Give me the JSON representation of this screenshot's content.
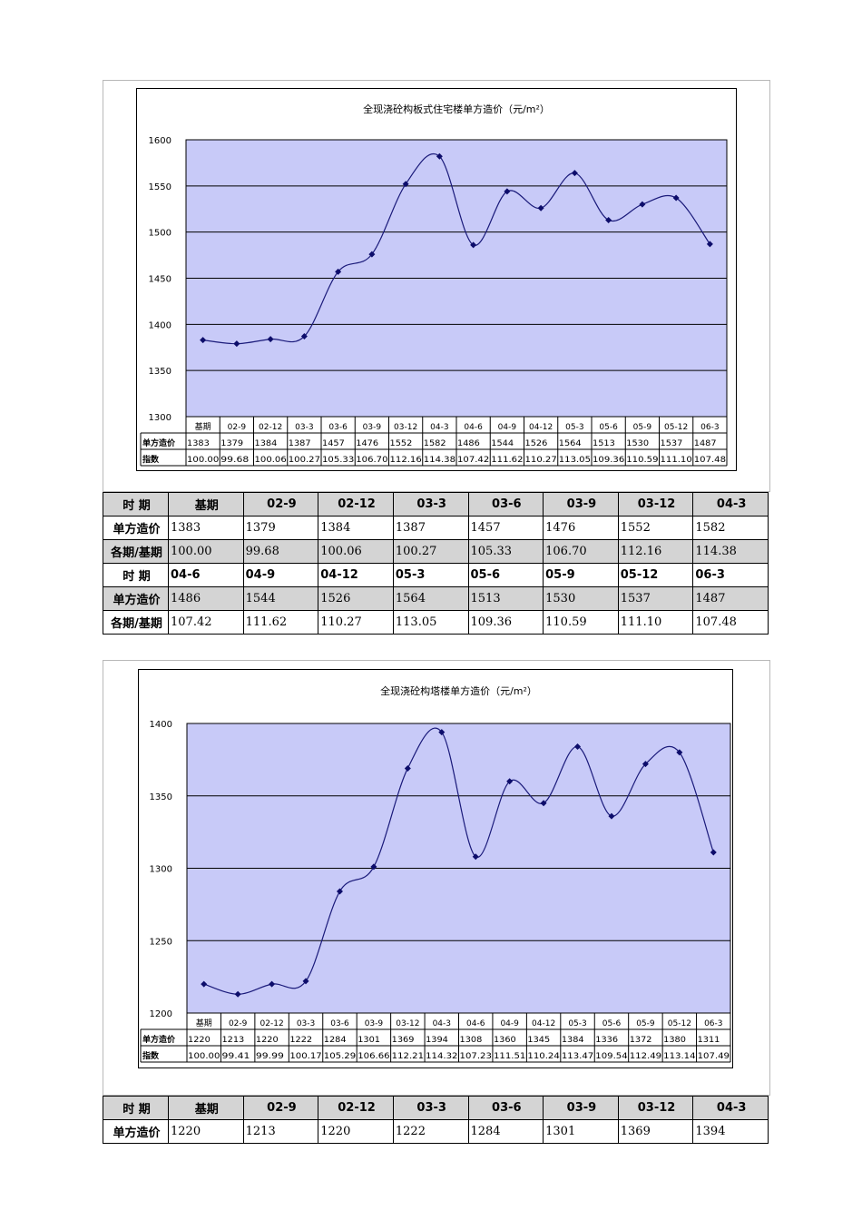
{
  "colors": {
    "plot_bg": "#c8caf8",
    "line": "#1a1a7a",
    "marker": "#0d0d6b",
    "grid": "#000000"
  },
  "table_labels": {
    "period": "时  期",
    "unit_price": "单方造价",
    "ratio": "各期/基期"
  },
  "chart_data": [
    {
      "type": "line",
      "title": "全现浇砼构板式住宅楼单方造价（元/m²）",
      "categories": [
        "基期",
        "02-9",
        "02-12",
        "03-3",
        "03-6",
        "03-9",
        "03-12",
        "04-3",
        "04-6",
        "04-9",
        "04-12",
        "05-3",
        "05-6",
        "05-9",
        "05-12",
        "06-3"
      ],
      "series": [
        {
          "values": [
            1383,
            1379,
            1384,
            1387,
            1457,
            1476,
            1552,
            1582,
            1486,
            1544,
            1526,
            1564,
            1513,
            1530,
            1537,
            1487
          ]
        }
      ],
      "ylim": [
        1300,
        1600
      ],
      "yticks": [
        1300,
        1350,
        1400,
        1450,
        1500,
        1550,
        1600
      ],
      "grid": true,
      "data_table": {
        "row_labels": [
          "单方造价",
          "指数"
        ],
        "rows": [
          [
            "1383",
            "1379",
            "1384",
            "1387",
            "1457",
            "1476",
            "1552",
            "1582",
            "1486",
            "1544",
            "1526",
            "1564",
            "1513",
            "1530",
            "1537",
            "1487"
          ],
          [
            "100.00",
            "99.68",
            "100.06",
            "100.27",
            "105.33",
            "106.70",
            "112.16",
            "114.38",
            "107.42",
            "111.62",
            "110.27",
            "113.05",
            "109.36",
            "110.59",
            "111.10",
            "107.48"
          ]
        ]
      }
    },
    {
      "type": "line",
      "title": "全现浇砼构塔楼单方造价（元/m²）",
      "categories": [
        "基期",
        "02-9",
        "02-12",
        "03-3",
        "03-6",
        "03-9",
        "03-12",
        "04-3",
        "04-6",
        "04-9",
        "04-12",
        "05-3",
        "05-6",
        "05-9",
        "05-12",
        "06-3"
      ],
      "series": [
        {
          "values": [
            1220,
            1213,
            1220,
            1222,
            1284,
            1301,
            1369,
            1394,
            1308,
            1360,
            1345,
            1384,
            1336,
            1372,
            1380,
            1311
          ]
        }
      ],
      "ylim": [
        1200,
        1400
      ],
      "yticks": [
        1200,
        1250,
        1300,
        1350,
        1400
      ],
      "grid": true,
      "data_table": {
        "row_labels": [
          "单方造价",
          "指数"
        ],
        "rows": [
          [
            "1220",
            "1213",
            "1220",
            "1222",
            "1284",
            "1301",
            "1369",
            "1394",
            "1308",
            "1360",
            "1345",
            "1384",
            "1336",
            "1372",
            "1380",
            "1311"
          ],
          [
            "100.00",
            "99.41",
            "99.99",
            "100.17",
            "105.29",
            "106.66",
            "112.21",
            "114.32",
            "107.23",
            "111.51",
            "110.24",
            "113.47",
            "109.54",
            "112.49",
            "113.14",
            "107.49"
          ]
        ]
      }
    }
  ],
  "table1": {
    "head": [
      "基期",
      "02-9",
      "02-12",
      "03-3",
      "03-6",
      "03-9",
      "03-12",
      "04-3"
    ],
    "price1": [
      "1383",
      "1379",
      "1384",
      "1387",
      "1457",
      "1476",
      "1552",
      "1582"
    ],
    "ratio1": [
      "100.00",
      "99.68",
      "100.06",
      "100.27",
      "105.33",
      "106.70",
      "112.16",
      "114.38"
    ],
    "head2": [
      "04-6",
      "04-9",
      "04-12",
      "05-3",
      "05-6",
      "05-9",
      "05-12",
      "06-3"
    ],
    "price2": [
      "1486",
      "1544",
      "1526",
      "1564",
      "1513",
      "1530",
      "1537",
      "1487"
    ],
    "ratio2": [
      "107.42",
      "111.62",
      "110.27",
      "113.05",
      "109.36",
      "110.59",
      "111.10",
      "107.48"
    ]
  },
  "table2": {
    "head": [
      "基期",
      "02-9",
      "02-12",
      "03-3",
      "03-6",
      "03-9",
      "03-12",
      "04-3"
    ],
    "price1": [
      "1220",
      "1213",
      "1220",
      "1222",
      "1284",
      "1301",
      "1369",
      "1394"
    ]
  }
}
